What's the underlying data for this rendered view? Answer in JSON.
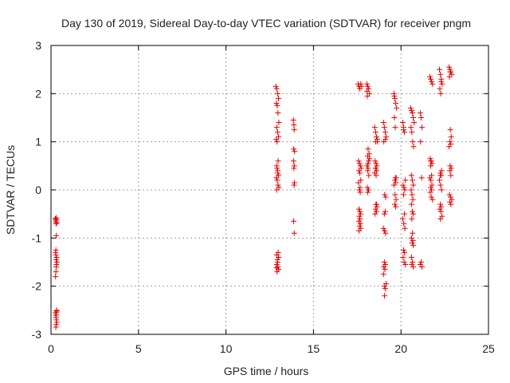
{
  "chart_data": {
    "type": "scatter",
    "title": "Day 130 of 2019, Sidereal Day-to-day VTEC variation (SDTVAR) for receiver pngm",
    "xlabel": "GPS time / hours",
    "ylabel": "SDTVAR / TECUs",
    "xlim": [
      0,
      25
    ],
    "ylim": [
      -3,
      3
    ],
    "xticks": [
      "0",
      "5",
      "10",
      "15",
      "20",
      "25"
    ],
    "yticks": [
      "-3",
      "-2",
      "-1",
      "0",
      "1",
      "2",
      "3"
    ],
    "grid": true,
    "marker": "+",
    "color": "#ee0000",
    "series": [
      {
        "name": "SDTVAR",
        "x": [
          0.25,
          0.27,
          0.29,
          0.31,
          0.33,
          0.3,
          0.26,
          0.28,
          0.32,
          0.34,
          0.3,
          0.28,
          0.26,
          0.29,
          0.31,
          0.33,
          0.3,
          0.27,
          0.29,
          0.31,
          0.33,
          0.3,
          0.28,
          0.26,
          0.3,
          0.32,
          0.28,
          0.3,
          12.85,
          12.9,
          12.95,
          13.0,
          12.88,
          12.93,
          12.97,
          13.02,
          12.9,
          12.95,
          13.0,
          12.87,
          12.92,
          12.98,
          12.9,
          12.95,
          13.0,
          12.88,
          12.93,
          12.97,
          13.02,
          12.9,
          12.95,
          12.92,
          12.98,
          12.9,
          13.0,
          12.94,
          12.9,
          12.96,
          13.0,
          12.92,
          12.88,
          12.95,
          13.85,
          13.88,
          13.9,
          13.87,
          13.92,
          13.86,
          13.9,
          13.88,
          13.91,
          13.89,
          13.87,
          13.9,
          17.55,
          17.6,
          17.65,
          17.7,
          17.75,
          17.58,
          17.63,
          17.68,
          17.72,
          17.6,
          17.65,
          17.7,
          17.57,
          17.62,
          17.67,
          17.6,
          17.65,
          17.7,
          17.62,
          17.66,
          17.6,
          17.68,
          17.64,
          17.7,
          17.6,
          17.66,
          18.05,
          18.1,
          18.15,
          18.2,
          18.08,
          18.12,
          18.18,
          18.1,
          18.15,
          18.06,
          18.12,
          18.1,
          18.16,
          18.08,
          18.14,
          18.1,
          18.2,
          18.12,
          18.06,
          18.15,
          18.5,
          18.55,
          18.6,
          18.65,
          18.52,
          18.58,
          18.62,
          18.55,
          18.6,
          18.5,
          18.57,
          18.63,
          18.55,
          18.6,
          18.52,
          18.58,
          18.65,
          18.55,
          18.6,
          18.56,
          19.0,
          19.05,
          19.1,
          19.15,
          19.02,
          19.07,
          19.12,
          19.05,
          19.1,
          19.0,
          19.06,
          19.12,
          19.05,
          19.1,
          19.02,
          19.08,
          19.15,
          19.05,
          19.1,
          19.06,
          19.0,
          19.12,
          19.6,
          19.65,
          19.7,
          19.75,
          19.62,
          19.67,
          19.72,
          19.65,
          19.7,
          19.6,
          19.66,
          19.72,
          19.65,
          19.7,
          19.62,
          19.68,
          20.1,
          20.15,
          20.2,
          20.25,
          20.12,
          20.17,
          20.22,
          20.15,
          20.2,
          20.1,
          20.16,
          20.22,
          20.15,
          20.2,
          20.12,
          20.18,
          20.25,
          20.15,
          20.55,
          20.6,
          20.65,
          20.7,
          20.75,
          20.57,
          20.62,
          20.67,
          20.72,
          20.6,
          20.65,
          20.7,
          20.58,
          20.63,
          20.68,
          20.6,
          20.65,
          20.7,
          20.62,
          20.66,
          20.6,
          20.68,
          20.64,
          20.7,
          20.6,
          20.66,
          20.62,
          20.7,
          21.1,
          21.15,
          21.2,
          21.12,
          21.18,
          21.15,
          21.1,
          21.2,
          21.65,
          21.7,
          21.75,
          21.8,
          21.67,
          21.72,
          21.77,
          21.7,
          21.75,
          21.65,
          21.71,
          21.77,
          21.7,
          21.75,
          21.67,
          21.73,
          21.8,
          21.7,
          22.2,
          22.25,
          22.3,
          22.35,
          22.22,
          22.27,
          22.32,
          22.25,
          22.3,
          22.2,
          22.26,
          22.32,
          22.25,
          22.3,
          22.22,
          22.28,
          22.35,
          22.25,
          22.3,
          22.26,
          22.75,
          22.8,
          22.85,
          22.9,
          22.77,
          22.82,
          22.87,
          22.8,
          22.85,
          22.75,
          22.81,
          22.87,
          22.8,
          22.85,
          22.77,
          22.83,
          22.9,
          22.8,
          22.85,
          22.81
        ],
        "y": [
          -0.6,
          -0.65,
          -0.7,
          -0.62,
          -0.68,
          -0.95,
          -1.3,
          -1.35,
          -1.4,
          -1.5,
          -1.6,
          -1.7,
          -1.8,
          -1.45,
          -1.55,
          -2.5,
          -2.55,
          -2.6,
          -2.65,
          -2.7,
          -2.75,
          -2.8,
          -2.85,
          -2.55,
          -2.6,
          -2.52,
          -1.25,
          -0.58,
          2.15,
          2.1,
          2.0,
          1.9,
          1.8,
          1.75,
          1.6,
          1.4,
          1.3,
          1.2,
          1.1,
          1.05,
          1.0,
          0.6,
          0.5,
          0.4,
          0.3,
          0.25,
          0.2,
          0.1,
          0.05,
          0.0,
          0.35,
          0.45,
          -1.3,
          -1.35,
          -1.4,
          -1.45,
          -1.55,
          -1.6,
          -1.65,
          -1.7,
          -1.62,
          -1.5,
          1.45,
          1.35,
          1.25,
          0.85,
          0.8,
          0.6,
          0.5,
          0.45,
          0.15,
          0.1,
          -0.65,
          -0.9,
          2.2,
          2.15,
          2.1,
          2.2,
          2.15,
          0.6,
          0.55,
          0.5,
          0.45,
          0.4,
          0.35,
          0.2,
          0.15,
          0.0,
          -0.05,
          -0.4,
          -0.45,
          -0.5,
          -0.55,
          -0.6,
          -0.65,
          -0.7,
          -0.75,
          -0.8,
          -0.85,
          0.05,
          2.2,
          2.15,
          2.1,
          2.0,
          1.95,
          0.85,
          0.75,
          0.7,
          0.6,
          0.5,
          0.45,
          0.4,
          0.3,
          0.05,
          0.0,
          -0.05,
          0.65,
          0.55,
          2.05,
          0.0,
          1.3,
          1.2,
          1.1,
          1.0,
          0.6,
          0.55,
          0.5,
          0.45,
          0.4,
          0.35,
          -0.3,
          -0.35,
          -0.4,
          -0.45,
          -0.5,
          0.3,
          1.05,
          1.0,
          -0.3,
          0.45,
          1.4,
          1.3,
          1.2,
          1.1,
          1.0,
          -0.1,
          -0.15,
          -0.5,
          -0.45,
          -0.8,
          -0.85,
          -0.9,
          -1.5,
          -1.55,
          -1.6,
          -1.65,
          -1.95,
          -2.0,
          -2.05,
          -2.2,
          -1.75,
          1.05,
          2.0,
          1.9,
          1.8,
          1.7,
          1.5,
          1.3,
          0.25,
          0.2,
          0.15,
          0.1,
          -0.1,
          -0.2,
          -0.3,
          -0.35,
          1.95,
          0.25,
          1.4,
          1.3,
          1.2,
          0.2,
          0.1,
          0.05,
          0.0,
          -0.1,
          -0.5,
          -0.6,
          -0.7,
          -0.8,
          -1.25,
          -1.3,
          -1.4,
          -1.5,
          -1.55,
          1.25,
          1.7,
          1.65,
          1.6,
          1.5,
          1.4,
          1.3,
          1.2,
          1.0,
          0.9,
          0.3,
          0.2,
          0.1,
          0.0,
          -0.1,
          -0.2,
          -0.3,
          -0.45,
          -0.5,
          -0.6,
          -0.9,
          -1.0,
          -1.05,
          -1.1,
          -1.15,
          -1.4,
          -1.5,
          -1.55,
          -1.6,
          1.6,
          1.5,
          1.3,
          1.0,
          0.25,
          -1.5,
          -1.55,
          -1.6,
          2.35,
          2.3,
          2.25,
          2.2,
          0.65,
          0.6,
          0.55,
          0.5,
          0.3,
          0.25,
          0.2,
          0.1,
          0.05,
          0.0,
          -0.05,
          -0.15,
          -0.2,
          0.6,
          2.5,
          2.4,
          2.3,
          2.2,
          2.1,
          2.0,
          0.4,
          0.35,
          0.3,
          0.2,
          0.1,
          0.0,
          -0.3,
          -0.35,
          -0.4,
          -0.45,
          -0.55,
          -0.6,
          2.25,
          0.3,
          2.55,
          2.5,
          2.45,
          2.4,
          2.35,
          1.25,
          1.1,
          1.0,
          0.95,
          0.9,
          0.5,
          0.45,
          0.4,
          0.3,
          -0.1,
          -0.15,
          -0.2,
          -0.25,
          -0.3,
          2.45
        ]
      }
    ]
  }
}
